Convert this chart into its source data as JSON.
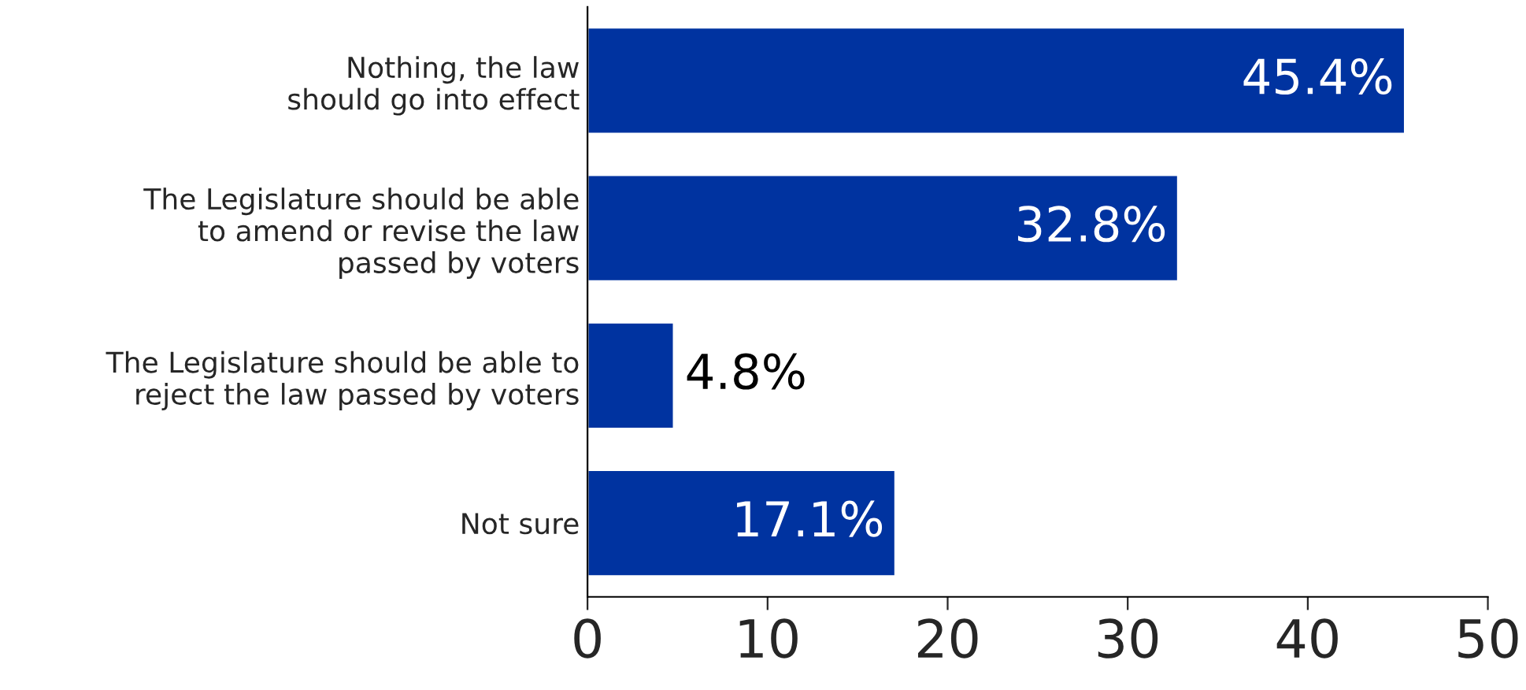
{
  "chart_data": {
    "type": "bar",
    "orientation": "horizontal",
    "categories": [
      "Nothing, the law\nshould go into effect",
      "The Legislature should be able\nto amend or revise the law\npassed by voters",
      "The Legislature should be able to\nreject the law passed by voters",
      "Not sure"
    ],
    "values": [
      45.4,
      32.8,
      4.8,
      17.1
    ],
    "value_labels": [
      "45.4%",
      "32.8%",
      "4.8%",
      "17.1%"
    ],
    "color": "#0033a0",
    "xlim": [
      0,
      50
    ],
    "xticks": [
      0,
      10,
      20,
      30,
      40,
      50
    ],
    "grid": false,
    "legend": false
  }
}
